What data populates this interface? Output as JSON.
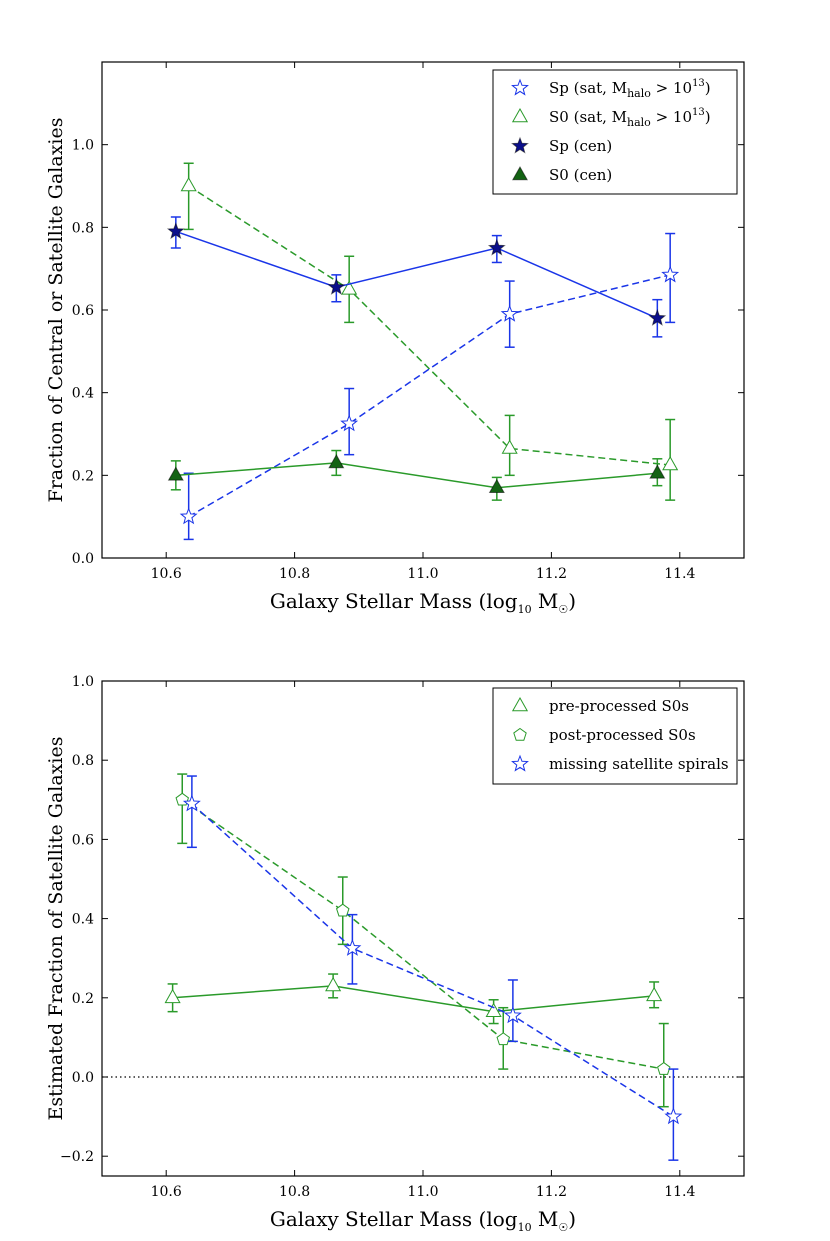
{
  "colors": {
    "blue": "#1a35e8",
    "darkblue": "#0b0f8c",
    "green": "#2a9a2a",
    "darkgreen": "#136313",
    "axis": "#000000"
  },
  "chart_data": [
    {
      "type": "line",
      "title": "",
      "xlabel": "Galaxy Stellar Mass (log",
      "xlabel_sub": "10",
      "xlabel_tail": " M",
      "xlabel_symbol": "☉",
      "xlabel_close": ")",
      "ylabel": "Fraction of Central or Satellite Galaxies",
      "xlim": [
        10.5,
        11.5
      ],
      "ylim": [
        0.0,
        1.2
      ],
      "xticks": [
        "10.6",
        "10.8",
        "11.0",
        "11.2",
        "11.4"
      ],
      "yticks": [
        "0.0",
        "0.2",
        "0.4",
        "0.6",
        "0.8",
        "1.0"
      ],
      "legend_position": "top-right",
      "series": [
        {
          "name": "Sp (sat, M_halo > 10^13)",
          "legend_prefix": "Sp (sat,  M",
          "legend_sub": "halo",
          "legend_mid": " > 10",
          "legend_sup": "13",
          "legend_suffix": ")",
          "color": "#1a35e8",
          "linestyle": "dashed",
          "marker": "star",
          "filled": false,
          "x": [
            10.635,
            10.885,
            11.135,
            11.385
          ],
          "y": [
            0.1,
            0.325,
            0.59,
            0.685
          ],
          "err_low": [
            0.055,
            0.075,
            0.08,
            0.115
          ],
          "err_high": [
            0.105,
            0.085,
            0.08,
            0.1
          ]
        },
        {
          "name": "S0 (sat, M_halo > 10^13)",
          "legend_prefix": "S0 (sat,  M",
          "legend_sub": "halo",
          "legend_mid": " > 10",
          "legend_sup": "13",
          "legend_suffix": ")",
          "color": "#2a9a2a",
          "linestyle": "dashed",
          "marker": "triangle",
          "filled": false,
          "x": [
            10.635,
            10.885,
            11.135,
            11.385
          ],
          "y": [
            0.9,
            0.65,
            0.265,
            0.225
          ],
          "err_low": [
            0.105,
            0.08,
            0.065,
            0.085
          ],
          "err_high": [
            0.055,
            0.08,
            0.08,
            0.11
          ]
        },
        {
          "name": "Sp (cen)",
          "legend_prefix": "Sp (cen)",
          "color": "#1a35e8",
          "marker_color": "#0b0f8c",
          "linestyle": "solid",
          "marker": "star",
          "filled": true,
          "x": [
            10.615,
            10.865,
            11.115,
            11.365
          ],
          "y": [
            0.79,
            0.655,
            0.75,
            0.58
          ],
          "err_low": [
            0.04,
            0.035,
            0.035,
            0.045
          ],
          "err_high": [
            0.035,
            0.03,
            0.03,
            0.045
          ]
        },
        {
          "name": "S0 (cen)",
          "legend_prefix": "S0 (cen)",
          "color": "#2a9a2a",
          "marker_color": "#136313",
          "linestyle": "solid",
          "marker": "triangle",
          "filled": true,
          "x": [
            10.615,
            10.865,
            11.115,
            11.365
          ],
          "y": [
            0.2,
            0.23,
            0.17,
            0.205
          ],
          "err_low": [
            0.035,
            0.03,
            0.03,
            0.03
          ],
          "err_high": [
            0.035,
            0.03,
            0.025,
            0.035
          ]
        }
      ]
    },
    {
      "type": "line",
      "title": "",
      "xlabel": "Galaxy Stellar Mass (log",
      "xlabel_sub": "10",
      "xlabel_tail": " M",
      "xlabel_symbol": "☉",
      "xlabel_close": ")",
      "ylabel": "Estimated Fraction of Satellite Galaxies",
      "xlim": [
        10.5,
        11.5
      ],
      "ylim": [
        -0.25,
        1.0
      ],
      "xticks": [
        "10.6",
        "10.8",
        "11.0",
        "11.2",
        "11.4"
      ],
      "yticks": [
        "−0.2",
        "0.0",
        "0.2",
        "0.4",
        "0.6",
        "0.8",
        "1.0"
      ],
      "reference_line": {
        "y": 0.0,
        "style": "dotted"
      },
      "legend_position": "top-right",
      "series": [
        {
          "name": "pre-processed S0s",
          "legend_prefix": "pre-processed S0s",
          "color": "#2a9a2a",
          "linestyle": "solid",
          "marker": "triangle",
          "filled": false,
          "x": [
            10.61,
            10.86,
            11.11,
            11.36
          ],
          "y": [
            0.2,
            0.23,
            0.165,
            0.205
          ],
          "err_low": [
            0.035,
            0.03,
            0.03,
            0.03
          ],
          "err_high": [
            0.035,
            0.03,
            0.03,
            0.035
          ]
        },
        {
          "name": "post-processed S0s",
          "legend_prefix": "post-processed S0s",
          "color": "#2a9a2a",
          "linestyle": "dashed",
          "marker": "pentagon",
          "filled": false,
          "x": [
            10.625,
            10.875,
            11.125,
            11.375
          ],
          "y": [
            0.7,
            0.42,
            0.095,
            0.02
          ],
          "err_low": [
            0.11,
            0.085,
            0.075,
            0.095
          ],
          "err_high": [
            0.065,
            0.085,
            0.08,
            0.115
          ]
        },
        {
          "name": "missing satellite spirals",
          "legend_prefix": "missing satellite spirals",
          "color": "#1a35e8",
          "linestyle": "dashed",
          "marker": "star",
          "filled": false,
          "x": [
            10.64,
            10.89,
            11.14,
            11.39
          ],
          "y": [
            0.69,
            0.325,
            0.155,
            -0.1
          ],
          "err_low": [
            0.11,
            0.09,
            0.065,
            0.11
          ],
          "err_high": [
            0.07,
            0.085,
            0.09,
            0.12
          ]
        }
      ]
    }
  ]
}
